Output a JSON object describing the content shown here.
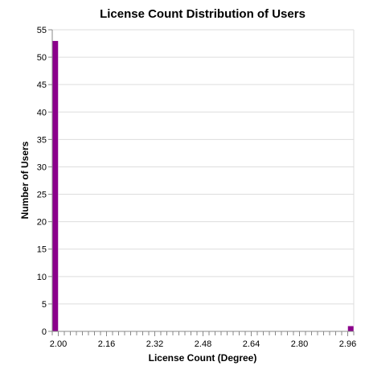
{
  "chart_data": {
    "type": "bar",
    "title": "License Count Distribution of Users",
    "xlabel": "License Count (Degree)",
    "ylabel": "Number of Users",
    "xlim": [
      1.98,
      2.98
    ],
    "ylim": [
      0,
      55
    ],
    "x_ticks": [
      "2.00",
      "2.16",
      "2.32",
      "2.48",
      "2.64",
      "2.80",
      "2.96"
    ],
    "y_ticks": [
      "0",
      "5",
      "10",
      "15",
      "20",
      "25",
      "30",
      "35",
      "40",
      "45",
      "50",
      "55"
    ],
    "grid": true,
    "bars": [
      {
        "x0": 1.98,
        "x1": 2.0,
        "value": 53
      },
      {
        "x0": 2.96,
        "x1": 2.98,
        "value": 1
      }
    ],
    "bar_color": "#8b008b"
  }
}
